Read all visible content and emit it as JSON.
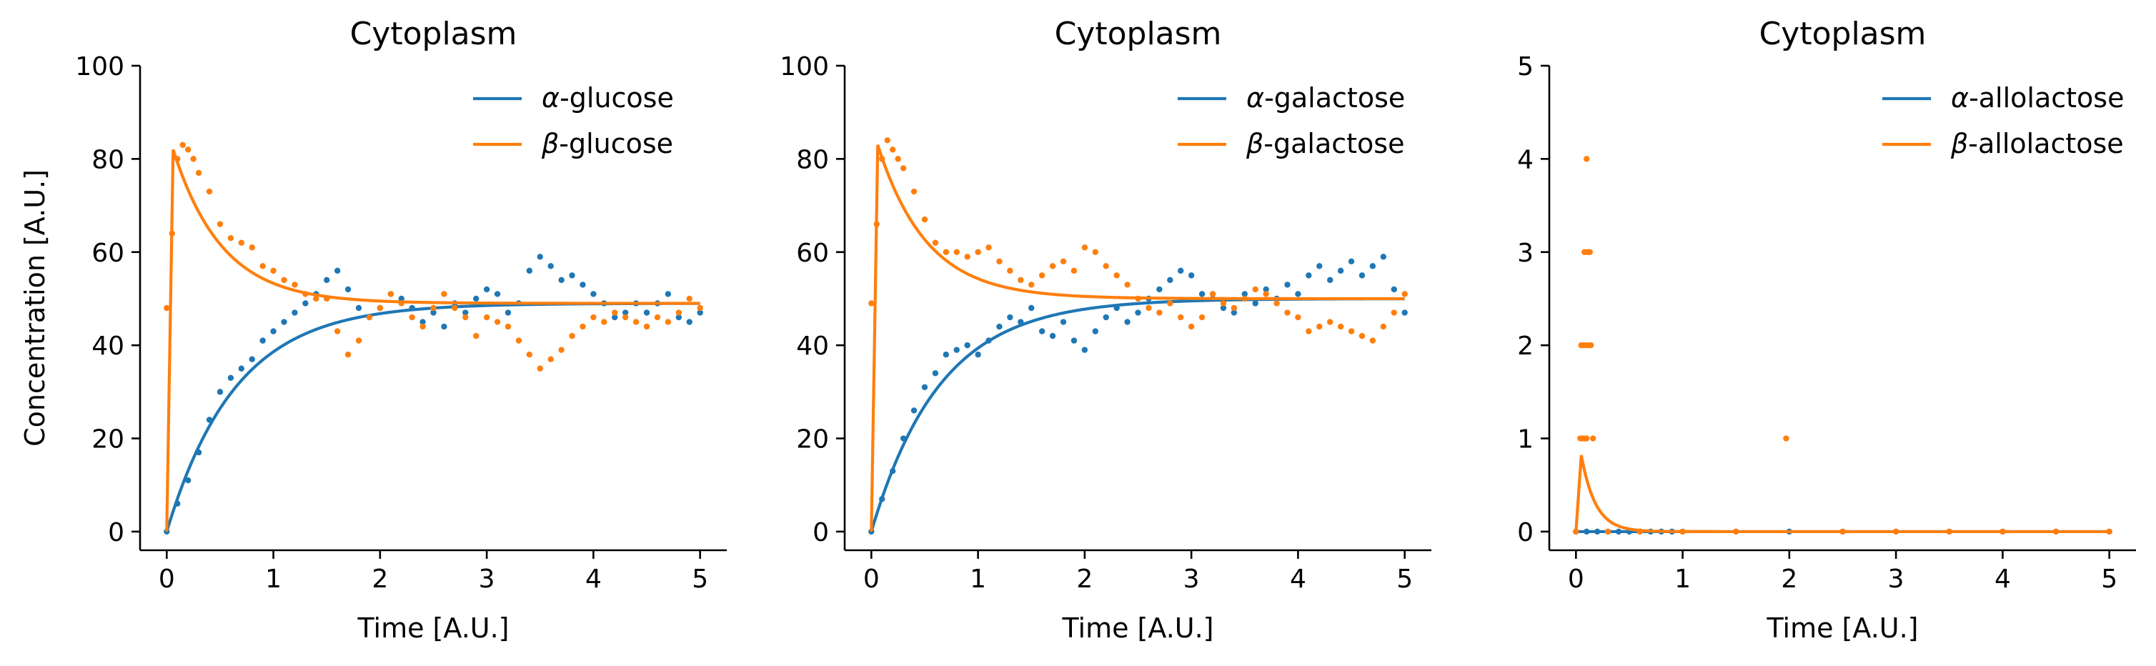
{
  "figure": {
    "colors": {
      "alpha": "#1f77b4",
      "beta": "#ff7f0e"
    }
  },
  "chart_data": [
    {
      "type": "line",
      "title": "Cytoplasm",
      "xlabel": "Time [A.U.]",
      "ylabel": "Concentration [A.U.]",
      "xlim": [
        -0.25,
        5.25
      ],
      "ylim": [
        -4,
        100
      ],
      "xticks": [
        0,
        1,
        2,
        3,
        4,
        5
      ],
      "yticks": [
        0,
        20,
        40,
        60,
        80,
        100
      ],
      "legend_position": "top-right",
      "series": [
        {
          "name": "α-glucose",
          "legend_prefix": "α",
          "legend_label": "-glucose",
          "color": "#1f77b4",
          "model": "rise",
          "equilibrium": 49,
          "peak": 0,
          "rate": 1.55,
          "scatter": {
            "t": [
              0.0,
              0.1,
              0.2,
              0.3,
              0.4,
              0.5,
              0.6,
              0.7,
              0.8,
              0.9,
              1.0,
              1.1,
              1.2,
              1.3,
              1.4,
              1.5,
              1.6,
              1.7,
              1.8,
              1.9,
              2.0,
              2.1,
              2.2,
              2.3,
              2.4,
              2.5,
              2.6,
              2.7,
              2.8,
              2.9,
              3.0,
              3.1,
              3.2,
              3.3,
              3.4,
              3.5,
              3.6,
              3.7,
              3.8,
              3.9,
              4.0,
              4.1,
              4.2,
              4.3,
              4.4,
              4.5,
              4.6,
              4.7,
              4.8,
              4.9,
              5.0
            ],
            "y": [
              0,
              6,
              11,
              17,
              24,
              30,
              33,
              35,
              37,
              41,
              43,
              45,
              47,
              49,
              51,
              54,
              56,
              52,
              48,
              46,
              48,
              51,
              50,
              48,
              45,
              47,
              44,
              49,
              47,
              50,
              52,
              51,
              47,
              49,
              56,
              59,
              57,
              54,
              55,
              53,
              51,
              49,
              46,
              47,
              49,
              47,
              49,
              51,
              46,
              45,
              47
            ]
          }
        },
        {
          "name": "β-glucose",
          "legend_prefix": "β",
          "legend_label": "-glucose",
          "color": "#ff7f0e",
          "model": "risefall",
          "equilibrium": 49,
          "peak": 82,
          "rate": 1.55,
          "scatter": {
            "t": [
              0.0,
              0.05,
              0.1,
              0.15,
              0.2,
              0.25,
              0.3,
              0.4,
              0.5,
              0.6,
              0.7,
              0.8,
              0.9,
              1.0,
              1.1,
              1.2,
              1.3,
              1.4,
              1.5,
              1.6,
              1.7,
              1.8,
              1.9,
              2.0,
              2.1,
              2.2,
              2.3,
              2.4,
              2.5,
              2.6,
              2.7,
              2.8,
              2.9,
              3.0,
              3.1,
              3.2,
              3.3,
              3.4,
              3.5,
              3.6,
              3.7,
              3.8,
              3.9,
              4.0,
              4.1,
              4.2,
              4.3,
              4.4,
              4.5,
              4.6,
              4.7,
              4.8,
              4.9,
              5.0
            ],
            "y": [
              48,
              64,
              80,
              83,
              82,
              80,
              77,
              73,
              66,
              63,
              62,
              61,
              57,
              56,
              54,
              53,
              51,
              50,
              50,
              43,
              38,
              41,
              46,
              48,
              51,
              49,
              46,
              44,
              48,
              51,
              48,
              46,
              42,
              46,
              45,
              44,
              41,
              38,
              35,
              37,
              39,
              42,
              44,
              46,
              45,
              47,
              46,
              45,
              44,
              46,
              45,
              47,
              50,
              48
            ]
          }
        }
      ]
    },
    {
      "type": "line",
      "title": "Cytoplasm",
      "xlabel": "Time [A.U.]",
      "ylabel": "",
      "xlim": [
        -0.25,
        5.25
      ],
      "ylim": [
        -4,
        100
      ],
      "xticks": [
        0,
        1,
        2,
        3,
        4,
        5
      ],
      "yticks": [
        0,
        20,
        40,
        60,
        80,
        100
      ],
      "legend_position": "top-right",
      "series": [
        {
          "name": "α-galactose",
          "legend_prefix": "α",
          "legend_label": "-galactose",
          "color": "#1f77b4",
          "model": "rise",
          "equilibrium": 50,
          "peak": 0,
          "rate": 1.55,
          "scatter": {
            "t": [
              0.0,
              0.1,
              0.2,
              0.3,
              0.4,
              0.5,
              0.6,
              0.7,
              0.8,
              0.9,
              1.0,
              1.1,
              1.2,
              1.3,
              1.4,
              1.5,
              1.6,
              1.7,
              1.8,
              1.9,
              2.0,
              2.1,
              2.2,
              2.3,
              2.4,
              2.5,
              2.6,
              2.7,
              2.8,
              2.9,
              3.0,
              3.1,
              3.2,
              3.3,
              3.4,
              3.5,
              3.6,
              3.7,
              3.8,
              3.9,
              4.0,
              4.1,
              4.2,
              4.3,
              4.4,
              4.5,
              4.6,
              4.7,
              4.8,
              4.9,
              5.0
            ],
            "y": [
              0,
              7,
              13,
              20,
              26,
              31,
              34,
              38,
              39,
              40,
              38,
              41,
              44,
              46,
              45,
              48,
              43,
              42,
              45,
              41,
              39,
              43,
              46,
              48,
              45,
              47,
              50,
              52,
              54,
              56,
              55,
              51,
              50,
              48,
              47,
              51,
              49,
              52,
              50,
              53,
              51,
              55,
              57,
              54,
              56,
              58,
              55,
              57,
              59,
              52,
              47
            ]
          }
        },
        {
          "name": "β-galactose",
          "legend_prefix": "β",
          "legend_label": "-galactose",
          "color": "#ff7f0e",
          "model": "risefall",
          "equilibrium": 50,
          "peak": 83,
          "rate": 1.55,
          "scatter": {
            "t": [
              0.0,
              0.05,
              0.1,
              0.15,
              0.2,
              0.25,
              0.3,
              0.4,
              0.5,
              0.6,
              0.7,
              0.8,
              0.9,
              1.0,
              1.1,
              1.2,
              1.3,
              1.4,
              1.5,
              1.6,
              1.7,
              1.8,
              1.9,
              2.0,
              2.1,
              2.2,
              2.3,
              2.4,
              2.5,
              2.6,
              2.7,
              2.8,
              2.9,
              3.0,
              3.1,
              3.2,
              3.3,
              3.4,
              3.5,
              3.6,
              3.7,
              3.8,
              3.9,
              4.0,
              4.1,
              4.2,
              4.3,
              4.4,
              4.5,
              4.6,
              4.7,
              4.8,
              4.9,
              5.0
            ],
            "y": [
              49,
              66,
              80,
              84,
              82,
              80,
              78,
              73,
              67,
              62,
              60,
              60,
              59,
              60,
              61,
              58,
              56,
              54,
              53,
              55,
              57,
              58,
              56,
              61,
              60,
              57,
              55,
              53,
              50,
              48,
              47,
              49,
              46,
              44,
              46,
              51,
              49,
              48,
              50,
              52,
              51,
              49,
              47,
              46,
              43,
              44,
              45,
              44,
              43,
              42,
              41,
              44,
              47,
              51
            ]
          }
        }
      ]
    },
    {
      "type": "line",
      "title": "Cytoplasm",
      "xlabel": "Time [A.U.]",
      "ylabel": "",
      "xlim": [
        -0.25,
        5.25
      ],
      "ylim": [
        -0.2,
        5
      ],
      "xticks": [
        0,
        1,
        2,
        3,
        4,
        5
      ],
      "yticks": [
        0,
        1,
        2,
        3,
        4,
        5
      ],
      "legend_position": "top-right",
      "series": [
        {
          "name": "α-allolactose",
          "legend_prefix": "α",
          "legend_label": "-allolactose",
          "color": "#1f77b4",
          "model": "flat",
          "equilibrium": 0,
          "peak": 0,
          "rate": 1,
          "scatter": {
            "t": [
              0.0,
              0.1,
              0.2,
              0.3,
              0.4,
              0.5,
              0.6,
              0.7,
              0.8,
              0.9,
              1.0,
              1.5,
              2.0,
              2.5,
              3.0,
              3.5,
              4.0,
              4.5,
              5.0
            ],
            "y": [
              0,
              0,
              0,
              0,
              0,
              0,
              0,
              0,
              0,
              0,
              0,
              0,
              0,
              0,
              0,
              0,
              0,
              0,
              0
            ]
          }
        },
        {
          "name": "β-allolactose",
          "legend_prefix": "β",
          "legend_label": "-allolactose",
          "color": "#ff7f0e",
          "model": "spike",
          "equilibrium": 0,
          "peak": 0.82,
          "rate": 7.5,
          "scatter": {
            "t": [
              0.0,
              0.04,
              0.06,
              0.08,
              0.1,
              0.05,
              0.07,
              0.09,
              0.12,
              0.14,
              0.08,
              0.11,
              0.13,
              0.16,
              0.1,
              1.97,
              0.3,
              0.6,
              1.0,
              1.5,
              2.5,
              3.0,
              3.5,
              4.0,
              4.5,
              5.0
            ],
            "y": [
              0,
              1,
              1,
              1,
              1,
              2,
              2,
              2,
              2,
              2,
              3,
              3,
              3,
              1,
              4,
              1,
              0,
              0,
              0,
              0,
              0,
              0,
              0,
              0,
              0,
              0
            ]
          }
        }
      ]
    }
  ]
}
